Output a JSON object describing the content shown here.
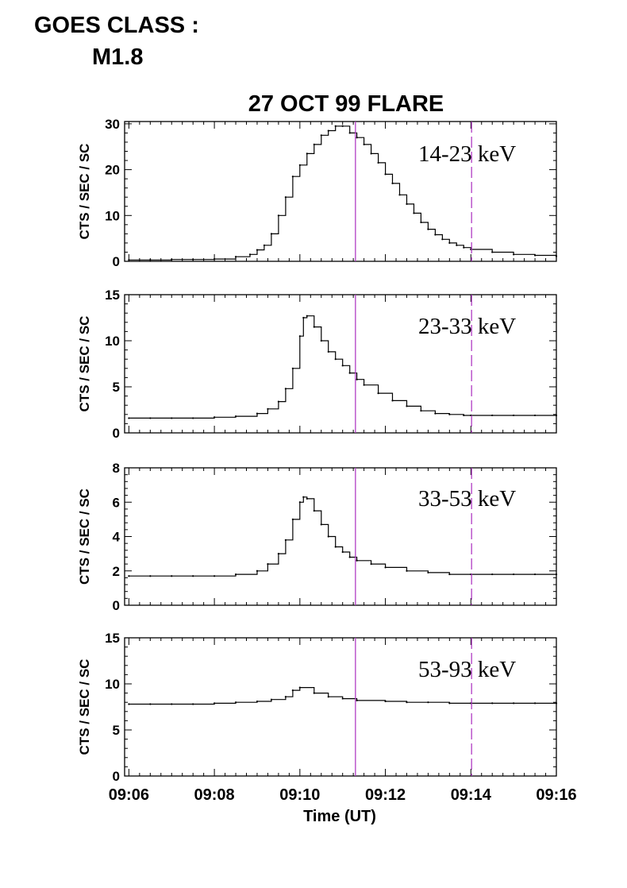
{
  "header": {
    "line1": "GOES CLASS :",
    "line2": "M1.8"
  },
  "chart_data": {
    "type": "line",
    "title": "27 OCT 99 FLARE",
    "xlabel": "Time (UT)",
    "xlim": [
      "09:05:54",
      "09:16:00"
    ],
    "x_ticks": [
      "09:06",
      "09:08",
      "09:10",
      "09:12",
      "09:14",
      "09:16"
    ],
    "grid": false,
    "markers": [
      {
        "time": "09:11:18",
        "style": "solid",
        "color": "#b03dc4"
      },
      {
        "time": "09:14:01",
        "style": "dashed",
        "color": "#b03dc4"
      }
    ],
    "panels": [
      {
        "label": "14-23 keV",
        "ylabel": "CTS / SEC / SC",
        "ylim": [
          0,
          30.5
        ],
        "yticks": [
          0,
          10,
          20,
          30
        ],
        "series": [
          {
            "x": [
              "09:06:00",
              "09:06:30",
              "09:07:00",
              "09:07:30",
              "09:08:00",
              "09:08:30",
              "09:08:50",
              "09:09:00",
              "09:09:10",
              "09:09:20",
              "09:09:30",
              "09:09:40",
              "09:09:50",
              "09:10:00",
              "09:10:10",
              "09:10:20",
              "09:10:30",
              "09:10:40",
              "09:10:50",
              "09:11:00",
              "09:11:10",
              "09:11:20",
              "09:11:30",
              "09:11:40",
              "09:11:50",
              "09:12:00",
              "09:12:10",
              "09:12:20",
              "09:12:30",
              "09:12:40",
              "09:12:50",
              "09:13:00",
              "09:13:10",
              "09:13:20",
              "09:13:30",
              "09:13:40",
              "09:13:50",
              "09:14:00",
              "09:14:30",
              "09:15:00",
              "09:15:30",
              "09:16:00"
            ],
            "y": [
              0.3,
              0.3,
              0.4,
              0.4,
              0.5,
              1.0,
              1.5,
              2.5,
              3.5,
              6.0,
              10.0,
              14.0,
              18.5,
              21.0,
              23.5,
              25.5,
              27.5,
              28.5,
              29.5,
              29.5,
              28.0,
              27.0,
              25.5,
              23.5,
              21.5,
              19.0,
              17.0,
              14.5,
              12.5,
              10.5,
              8.5,
              7.0,
              5.8,
              4.8,
              4.0,
              3.5,
              3.0,
              2.6,
              2.0,
              1.5,
              1.3,
              1.1
            ]
          }
        ]
      },
      {
        "label": "23-33 keV",
        "ylabel": "CTS / SEC / SC",
        "ylim": [
          0,
          15
        ],
        "yticks": [
          0,
          5,
          10,
          15
        ],
        "series": [
          {
            "x": [
              "09:06:00",
              "09:06:30",
              "09:07:00",
              "09:07:30",
              "09:08:00",
              "09:08:30",
              "09:09:00",
              "09:09:15",
              "09:09:30",
              "09:09:40",
              "09:09:50",
              "09:10:00",
              "09:10:05",
              "09:10:10",
              "09:10:20",
              "09:10:30",
              "09:10:40",
              "09:10:50",
              "09:11:00",
              "09:11:10",
              "09:11:20",
              "09:11:30",
              "09:11:50",
              "09:12:10",
              "09:12:30",
              "09:12:50",
              "09:13:10",
              "09:13:30",
              "09:13:50",
              "09:14:00",
              "09:14:30",
              "09:15:00",
              "09:15:30",
              "09:16:00"
            ],
            "y": [
              1.6,
              1.6,
              1.6,
              1.6,
              1.7,
              1.8,
              2.1,
              2.6,
              3.4,
              4.8,
              7.0,
              10.5,
              12.5,
              12.7,
              11.5,
              10.0,
              8.8,
              8.0,
              7.3,
              6.5,
              5.8,
              5.2,
              4.3,
              3.5,
              2.9,
              2.4,
              2.1,
              2.0,
              1.9,
              1.9,
              1.9,
              1.9,
              1.9,
              1.9
            ]
          }
        ]
      },
      {
        "label": "33-53 keV",
        "ylabel": "CTS / SEC / SC",
        "ylim": [
          0,
          8
        ],
        "yticks": [
          0,
          2,
          4,
          6,
          8
        ],
        "series": [
          {
            "x": [
              "09:06:00",
              "09:06:30",
              "09:07:00",
              "09:07:30",
              "09:08:00",
              "09:08:30",
              "09:09:00",
              "09:09:15",
              "09:09:30",
              "09:09:40",
              "09:09:50",
              "09:10:00",
              "09:10:05",
              "09:10:10",
              "09:10:20",
              "09:10:30",
              "09:10:40",
              "09:10:50",
              "09:11:00",
              "09:11:10",
              "09:11:20",
              "09:11:40",
              "09:12:00",
              "09:12:30",
              "09:13:00",
              "09:13:30",
              "09:14:00",
              "09:14:30",
              "09:15:00",
              "09:15:30",
              "09:16:00"
            ],
            "y": [
              1.7,
              1.7,
              1.7,
              1.7,
              1.7,
              1.8,
              2.0,
              2.4,
              3.0,
              3.8,
              5.0,
              6.0,
              6.3,
              6.2,
              5.5,
              4.7,
              4.0,
              3.4,
              3.1,
              2.8,
              2.6,
              2.4,
              2.2,
              2.0,
              1.9,
              1.8,
              1.8,
              1.8,
              1.8,
              1.8,
              1.8
            ]
          }
        ]
      },
      {
        "label": "53-93 keV",
        "ylabel": "CTS / SEC / SC",
        "ylim": [
          0,
          15
        ],
        "yticks": [
          0,
          5,
          10,
          15
        ],
        "series": [
          {
            "x": [
              "09:06:00",
              "09:06:30",
              "09:07:00",
              "09:07:30",
              "09:08:00",
              "09:08:30",
              "09:09:00",
              "09:09:20",
              "09:09:40",
              "09:09:50",
              "09:10:00",
              "09:10:20",
              "09:10:40",
              "09:11:00",
              "09:11:20",
              "09:12:00",
              "09:12:30",
              "09:13:00",
              "09:13:30",
              "09:14:00",
              "09:14:30",
              "09:15:00",
              "09:15:30",
              "09:16:00"
            ],
            "y": [
              7.8,
              7.8,
              7.8,
              7.8,
              7.9,
              8.0,
              8.1,
              8.3,
              8.6,
              9.3,
              9.6,
              9.0,
              8.6,
              8.4,
              8.2,
              8.1,
              8.0,
              8.0,
              7.9,
              7.9,
              7.9,
              7.9,
              7.9,
              7.9
            ]
          }
        ]
      }
    ]
  }
}
